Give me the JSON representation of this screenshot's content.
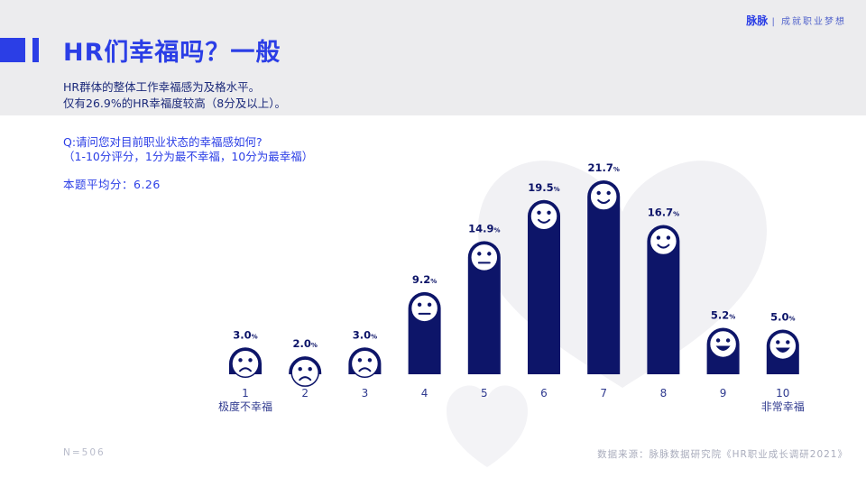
{
  "brand": {
    "name": "脉脉",
    "tagline": "成就职业梦想"
  },
  "header": {
    "title": "HR们幸福吗？一般",
    "subtitle_line1": "HR群体的整体工作幸福感为及格水平。",
    "subtitle_line2": "仅有26.9%的HR幸福度较高（8分及以上）。"
  },
  "question": {
    "line1": "Q:请问您对目前职业状态的幸福感如何?",
    "line2": "（1-10分评分，1分为最不幸福，10分为最幸福）"
  },
  "average": "本题平均分：6.26",
  "footer": {
    "sample": "N=506",
    "source": "数据来源：脉脉数据研究院《HR职业成长调研2021》"
  },
  "colors": {
    "bar": "#0d1569",
    "accent": "#2b3ee6",
    "label": "#0d1569",
    "face": "#ffffff"
  },
  "chart_data": {
    "type": "bar",
    "categories": [
      "1",
      "2",
      "3",
      "4",
      "5",
      "6",
      "7",
      "8",
      "9",
      "10"
    ],
    "values": [
      3.0,
      2.0,
      3.0,
      9.2,
      14.9,
      19.5,
      21.7,
      16.7,
      5.2,
      5.0
    ],
    "value_labels": [
      "3.0",
      "2.0",
      "3.0",
      "9.2",
      "14.9",
      "19.5",
      "21.7",
      "16.7",
      "5.2",
      "5.0"
    ],
    "value_unit": "%",
    "category_sublabels": {
      "1": "极度不幸福",
      "10": "非常幸福"
    },
    "faces": [
      "sad",
      "sad",
      "sad",
      "neutral",
      "neutral",
      "smile",
      "smile",
      "smile",
      "laugh",
      "laugh"
    ],
    "ylim": [
      0,
      21.7
    ]
  }
}
